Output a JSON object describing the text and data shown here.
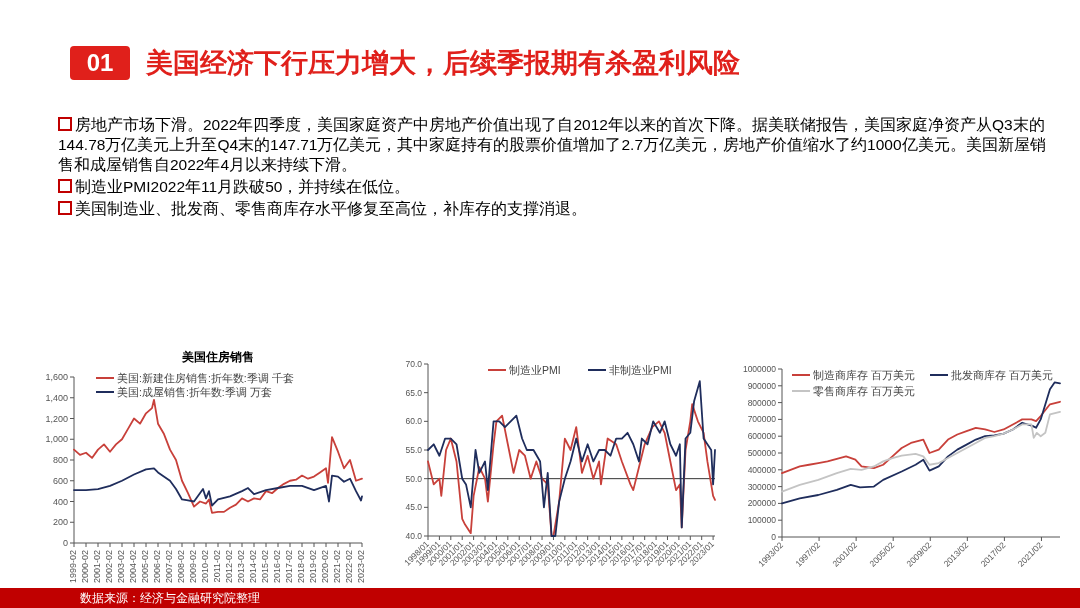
{
  "chart_data": [
    {
      "type": "other",
      "title": "美国经济下行压力增大，后续季报期有杀盈利风险",
      "subtitle": "01",
      "annotations": [
        "房地产市场下滑。2022年四季度，美国家庭资产中房地产价值出现了自2012年以来的首次下降。据美联储报告，美国家庭净资产从Q3末的144.78万亿美元上升至Q4末的147.71万亿美元，其中家庭持有的股票价值增加了2.7万亿美元，房地产价值缩水了约1000亿美元。美国新屋销售和成屋销售自2022年4月以来持续下滑。",
        "制造业PMI2022年11月跌破50，并持续在低位。",
        "美国制造业、批发商、零售商库存水平修复至高位，补库存的支撑消退。",
        "数据来源：经济与金融研究院整理"
      ]
    },
    {
      "type": "line",
      "title": "美国住房销售",
      "legend": "top left",
      "xlim": [
        "1999-02",
        "2023-02"
      ],
      "xticks": [
        "1999-02",
        "2000-02",
        "2001-02",
        "2002-02",
        "2003-02",
        "2004-02",
        "2005-02",
        "2006-02",
        "2007-02",
        "2008-02",
        "2009-02",
        "2010-02",
        "2011-02",
        "2012-02",
        "2013-02",
        "2014-02",
        "2015-02",
        "2016-02",
        "2017-02",
        "2018-02",
        "2019-02",
        "2020-02",
        "2021-02",
        "2022-02",
        "2023-02"
      ],
      "ylim": [
        0,
        1600
      ],
      "yticks": [
        0,
        200,
        400,
        600,
        800,
        {
          "value": 1000,
          "label": "1,000"
        },
        {
          "value": 1200,
          "label": "1,200"
        },
        {
          "value": 1400,
          "label": "1,400"
        },
        {
          "value": 1600,
          "label": "1,600"
        }
      ],
      "series": [
        {
          "name": "美国:新建住房销售:折年数:季调 千套",
          "color": "#c8403a",
          "x": [
            "1999-02",
            "1999-08",
            "2000-02",
            "2000-08",
            "2001-02",
            "2001-08",
            "2002-02",
            "2002-08",
            "2003-02",
            "2003-08",
            "2004-02",
            "2004-08",
            "2005-02",
            "2005-08",
            "2005-10",
            "2006-02",
            "2006-08",
            "2007-02",
            "2007-08",
            "2008-02",
            "2008-08",
            "2009-02",
            "2009-08",
            "2010-02",
            "2010-05",
            "2010-08",
            "2011-02",
            "2011-08",
            "2012-02",
            "2012-08",
            "2013-02",
            "2013-08",
            "2014-02",
            "2014-08",
            "2015-02",
            "2015-08",
            "2016-02",
            "2016-08",
            "2017-02",
            "2017-08",
            "2018-02",
            "2018-08",
            "2019-02",
            "2019-08",
            "2020-02",
            "2020-04",
            "2020-08",
            "2021-02",
            "2021-08",
            "2022-02",
            "2022-08",
            "2023-02"
          ],
          "values": [
            900,
            850,
            870,
            820,
            900,
            950,
            880,
            950,
            1000,
            1100,
            1200,
            1150,
            1250,
            1300,
            1380,
            1150,
            1050,
            900,
            800,
            600,
            480,
            350,
            400,
            380,
            420,
            290,
            300,
            300,
            340,
            370,
            430,
            400,
            430,
            420,
            500,
            480,
            530,
            570,
            600,
            610,
            650,
            620,
            640,
            680,
            720,
            580,
            1020,
            880,
            720,
            800,
            600,
            620
          ]
        },
        {
          "name": "美国:成屋销售:折年数:季调 万套",
          "color": "#1f2d5c",
          "x": [
            "1999-02",
            "2000-02",
            "2001-02",
            "2002-02",
            "2003-02",
            "2004-02",
            "2005-02",
            "2005-10",
            "2006-02",
            "2007-02",
            "2007-08",
            "2008-02",
            "2008-08",
            "2009-02",
            "2009-11",
            "2010-02",
            "2010-05",
            "2010-08",
            "2011-02",
            "2012-02",
            "2013-02",
            "2013-08",
            "2014-02",
            "2015-02",
            "2016-02",
            "2017-02",
            "2018-02",
            "2019-02",
            "2020-02",
            "2020-05",
            "2020-08",
            "2021-02",
            "2021-08",
            "2022-02",
            "2022-08",
            "2023-01",
            "2023-02"
          ],
          "values": [
            510,
            510,
            520,
            550,
            600,
            660,
            710,
            720,
            680,
            600,
            520,
            420,
            410,
            400,
            520,
            430,
            500,
            360,
            420,
            450,
            500,
            530,
            470,
            510,
            530,
            550,
            550,
            510,
            550,
            400,
            650,
            640,
            590,
            620,
            500,
            410,
            450
          ]
        }
      ]
    },
    {
      "type": "line",
      "legend": "top",
      "xlim": [
        "1998-01",
        "2023-03"
      ],
      "xticks": [
        {
          "value": "1998-01",
          "label": "1998/01"
        },
        {
          "value": "1999-01",
          "label": "1999/01"
        },
        {
          "value": "2000-01",
          "label": "2000/01"
        },
        {
          "value": "2001-01",
          "label": "2001/01"
        },
        {
          "value": "2002-01",
          "label": "2002/01"
        },
        {
          "value": "2003-01",
          "label": "2003/01"
        },
        {
          "value": "2004-01",
          "label": "2004/01"
        },
        {
          "value": "2005-01",
          "label": "2005/01"
        },
        {
          "value": "2006-01",
          "label": "2006/01"
        },
        {
          "value": "2007-01",
          "label": "2007/01"
        },
        {
          "value": "2008-01",
          "label": "2008/01"
        },
        {
          "value": "2009-01",
          "label": "2009/01"
        },
        {
          "value": "2010-01",
          "label": "2010/01"
        },
        {
          "value": "2011-01",
          "label": "2011/01"
        },
        {
          "value": "2012-01",
          "label": "2012/01"
        },
        {
          "value": "2013-01",
          "label": "2013/01"
        },
        {
          "value": "2014-01",
          "label": "2014/01"
        },
        {
          "value": "2015-01",
          "label": "2015/01"
        },
        {
          "value": "2016-01",
          "label": "2016/01"
        },
        {
          "value": "2017-01",
          "label": "2017/01"
        },
        {
          "value": "2018-01",
          "label": "2018/01"
        },
        {
          "value": "2019-01",
          "label": "2019/01"
        },
        {
          "value": "2020-01",
          "label": "2020/01"
        },
        {
          "value": "2021-01",
          "label": "2021/01"
        },
        {
          "value": "2022-01",
          "label": "2022/01"
        },
        {
          "value": "2023-01",
          "label": "2023/01"
        }
      ],
      "ylim": [
        40,
        70
      ],
      "yticks": [
        {
          "value": 40,
          "label": "40.0"
        },
        {
          "value": 45,
          "label": "45.0"
        },
        {
          "value": 50,
          "label": "50.0"
        },
        {
          "value": 55,
          "label": "55.0"
        },
        {
          "value": 60,
          "label": "60.0"
        },
        {
          "value": 65,
          "label": "65.0"
        },
        {
          "value": 70,
          "label": "70.0"
        }
      ],
      "ref_lines": [
        {
          "axis": "y",
          "value": 50,
          "color": "#333333"
        }
      ],
      "series": [
        {
          "name": "制造业PMI",
          "color": "#c8403a",
          "x": [
            "1998-01",
            "1998-07",
            "1999-01",
            "1999-03",
            "1999-08",
            "2000-01",
            "2000-07",
            "2001-01",
            "2001-04",
            "2001-10",
            "2002-01",
            "2002-07",
            "2003-01",
            "2003-04",
            "2003-10",
            "2004-01",
            "2004-07",
            "2005-01",
            "2005-07",
            "2006-01",
            "2006-07",
            "2007-01",
            "2007-07",
            "2008-01",
            "2008-07",
            "2008-11",
            "2009-01",
            "2009-07",
            "2010-01",
            "2010-07",
            "2011-01",
            "2011-07",
            "2012-01",
            "2012-07",
            "2013-01",
            "2013-03",
            "2013-10",
            "2014-07",
            "2015-01",
            "2015-10",
            "2016-01",
            "2016-07",
            "2017-01",
            "2017-09",
            "2018-04",
            "2018-10",
            "2019-04",
            "2019-10",
            "2020-02",
            "2020-04",
            "2020-08",
            "2021-01",
            "2021-03",
            "2021-09",
            "2022-03",
            "2022-07",
            "2022-11",
            "2023-01",
            "2023-03"
          ],
          "values": [
            53,
            49,
            50,
            47,
            55,
            57,
            53,
            43,
            42,
            40.5,
            47,
            52,
            50,
            46,
            56,
            60,
            61,
            56,
            51,
            55,
            54,
            50,
            53,
            50,
            49,
            40,
            40,
            46,
            57,
            55,
            59,
            51,
            54,
            50,
            53,
            49,
            57,
            56,
            53,
            49,
            48,
            52,
            56,
            59,
            60,
            58,
            53,
            48,
            49,
            41.5,
            55,
            60,
            63,
            60,
            58,
            53,
            49,
            47,
            46.3
          ]
        },
        {
          "name": "非制造业PMI",
          "color": "#1f2d5c",
          "x": [
            "1998-01",
            "1998-07",
            "1999-01",
            "1999-07",
            "2000-01",
            "2000-07",
            "2001-01",
            "2001-05",
            "2001-10",
            "2002-03",
            "2002-07",
            "2003-01",
            "2003-04",
            "2003-10",
            "2004-04",
            "2004-10",
            "2005-04",
            "2005-10",
            "2006-04",
            "2006-09",
            "2007-04",
            "2007-11",
            "2008-03",
            "2008-07",
            "2008-11",
            "2009-03",
            "2009-07",
            "2010-01",
            "2010-07",
            "2011-01",
            "2011-07",
            "2012-01",
            "2012-07",
            "2013-01",
            "2013-07",
            "2014-01",
            "2014-07",
            "2015-01",
            "2015-07",
            "2016-01",
            "2016-07",
            "2016-10",
            "2017-04",
            "2017-10",
            "2018-05",
            "2018-10",
            "2019-04",
            "2019-10",
            "2020-02",
            "2020-04",
            "2020-08",
            "2021-01",
            "2021-05",
            "2021-11",
            "2022-03",
            "2022-07",
            "2022-11",
            "2023-01",
            "2023-03"
          ],
          "values": [
            55,
            56,
            54,
            57,
            57,
            56,
            50,
            49,
            45,
            55,
            51,
            53,
            48,
            60,
            60,
            59,
            60,
            61,
            57,
            55,
            55,
            53,
            45,
            51,
            40,
            40,
            46,
            50,
            53,
            57,
            53,
            56,
            53,
            55,
            55,
            54,
            57,
            57,
            58,
            56,
            53,
            57,
            56,
            60,
            58,
            60,
            56,
            54,
            56,
            41.5,
            57,
            58,
            63.5,
            67,
            57,
            56,
            55,
            49,
            55
          ]
        }
      ]
    },
    {
      "type": "line",
      "legend": "top",
      "xlim": [
        "1993-02",
        "2023-02"
      ],
      "xticks": [
        {
          "value": "1993-02",
          "label": "1993/02"
        },
        {
          "value": "1997-02",
          "label": "1997/02"
        },
        {
          "value": "2001-02",
          "label": "2001/02"
        },
        {
          "value": "2005-02",
          "label": "2005/02"
        },
        {
          "value": "2009-02",
          "label": "2009/02"
        },
        {
          "value": "2013-02",
          "label": "2013/02"
        },
        {
          "value": "2017-02",
          "label": "2017/02"
        },
        {
          "value": "2021-02",
          "label": "2021/02"
        }
      ],
      "ylim": [
        0,
        1000000
      ],
      "yticks": [
        0,
        100000,
        200000,
        300000,
        400000,
        500000,
        600000,
        700000,
        800000,
        900000,
        1000000
      ],
      "series": [
        {
          "name": "制造商库存 百万美元",
          "color": "#c8403a",
          "x": [
            "1993-02",
            "1995-01",
            "1996-01",
            "1997-01",
            "1998-01",
            "2000-01",
            "2001-01",
            "2001-09",
            "2003-01",
            "2004-01",
            "2005-01",
            "2006-01",
            "2007-01",
            "2008-05",
            "2009-01",
            "2010-01",
            "2011-01",
            "2012-01",
            "2013-01",
            "2014-01",
            "2015-01",
            "2016-01",
            "2017-01",
            "2018-01",
            "2019-01",
            "2020-01",
            "2020-07",
            "2021-01",
            "2022-01",
            "2023-02"
          ],
          "values": [
            380000,
            420000,
            430000,
            440000,
            450000,
            480000,
            460000,
            420000,
            410000,
            430000,
            480000,
            530000,
            560000,
            580000,
            500000,
            520000,
            580000,
            610000,
            630000,
            650000,
            640000,
            625000,
            640000,
            670000,
            700000,
            700000,
            690000,
            720000,
            790000,
            805000
          ]
        },
        {
          "name": "批发商库存 百万美元",
          "color": "#1f2d5c",
          "x": [
            "1993-02",
            "1995-01",
            "1997-01",
            "1999-01",
            "2000-07",
            "2001-07",
            "2003-01",
            "2004-01",
            "2006-01",
            "2007-07",
            "2008-05",
            "2009-01",
            "2010-01",
            "2011-01",
            "2012-01",
            "2013-01",
            "2014-01",
            "2015-01",
            "2016-01",
            "2017-01",
            "2018-01",
            "2019-01",
            "2020-03",
            "2020-07",
            "2021-01",
            "2022-01",
            "2022-07",
            "2023-02"
          ],
          "values": [
            200000,
            230000,
            250000,
            280000,
            310000,
            295000,
            300000,
            340000,
            390000,
            430000,
            460000,
            395000,
            420000,
            480000,
            520000,
            550000,
            580000,
            600000,
            605000,
            615000,
            640000,
            680000,
            660000,
            650000,
            700000,
            880000,
            920000,
            915000
          ]
        },
        {
          "name": "零售商库存 百万美元",
          "color": "#c4c4c4",
          "x": [
            "1993-02",
            "1995-01",
            "1997-01",
            "1999-01",
            "2000-07",
            "2001-09",
            "2003-01",
            "2004-01",
            "2005-01",
            "2006-01",
            "2007-07",
            "2008-05",
            "2009-01",
            "2010-01",
            "2011-01",
            "2012-01",
            "2013-01",
            "2014-01",
            "2015-01",
            "2016-01",
            "2017-01",
            "2018-01",
            "2019-01",
            "2020-01",
            "2020-04",
            "2020-08",
            "2021-01",
            "2021-07",
            "2022-01",
            "2023-02"
          ],
          "values": [
            270000,
            310000,
            340000,
            380000,
            405000,
            400000,
            420000,
            450000,
            470000,
            485000,
            495000,
            480000,
            430000,
            440000,
            470000,
            500000,
            530000,
            560000,
            590000,
            600000,
            615000,
            640000,
            670000,
            670000,
            590000,
            620000,
            600000,
            620000,
            730000,
            745000
          ]
        }
      ]
    }
  ]
}
